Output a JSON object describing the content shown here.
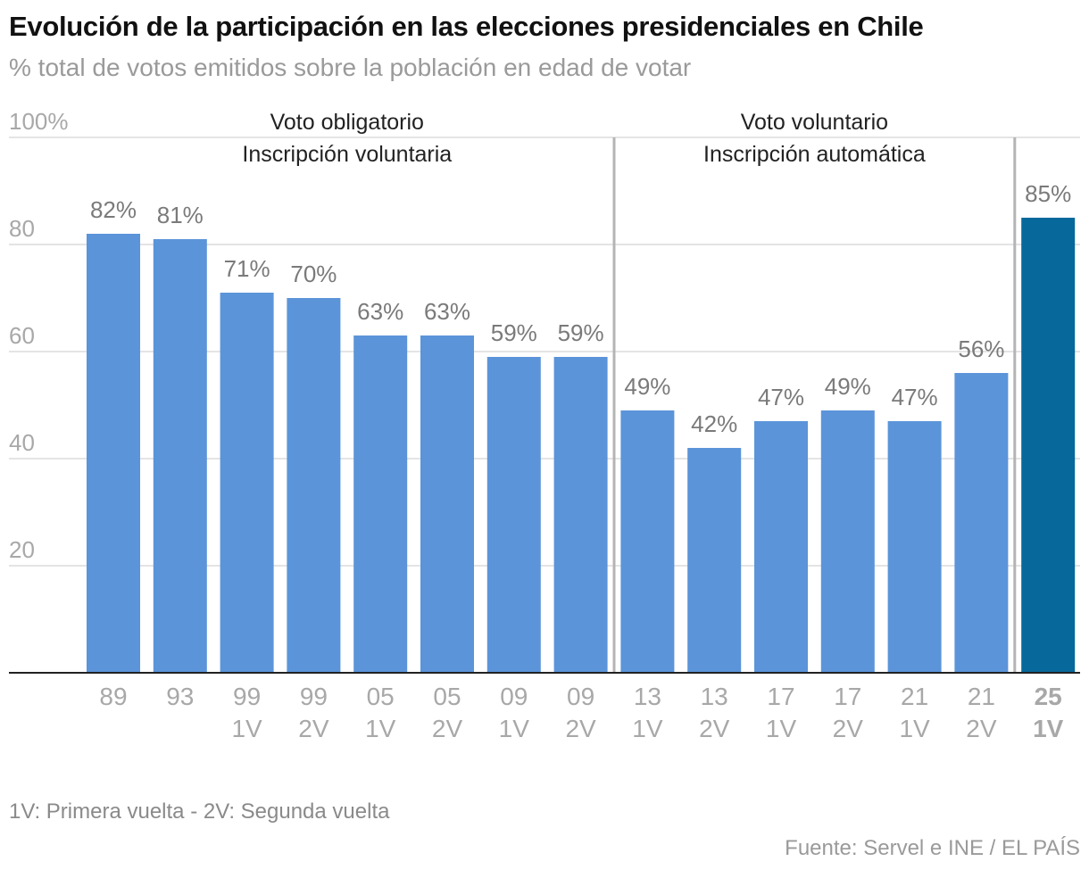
{
  "chart_data": {
    "type": "bar",
    "title": "Evolución de la participación en las elecciones presidenciales en Chile",
    "subtitle": "% total de votos emitidos sobre la población en edad de votar",
    "ylim": [
      0,
      100
    ],
    "yticks": [
      {
        "value": 100,
        "label": "100%"
      },
      {
        "value": 80,
        "label": "80"
      },
      {
        "value": 60,
        "label": "60"
      },
      {
        "value": 40,
        "label": "40"
      },
      {
        "value": 20,
        "label": "20"
      }
    ],
    "categories": [
      {
        "year": "89",
        "round": ""
      },
      {
        "year": "93",
        "round": ""
      },
      {
        "year": "99",
        "round": "1V"
      },
      {
        "year": "99",
        "round": "2V"
      },
      {
        "year": "05",
        "round": "1V"
      },
      {
        "year": "05",
        "round": "2V"
      },
      {
        "year": "09",
        "round": "1V"
      },
      {
        "year": "09",
        "round": "2V"
      },
      {
        "year": "13",
        "round": "1V"
      },
      {
        "year": "13",
        "round": "2V"
      },
      {
        "year": "17",
        "round": "1V"
      },
      {
        "year": "17",
        "round": "2V"
      },
      {
        "year": "21",
        "round": "1V"
      },
      {
        "year": "21",
        "round": "2V"
      },
      {
        "year": "25",
        "round": "1V",
        "highlight": true
      }
    ],
    "values": [
      82,
      81,
      71,
      70,
      63,
      63,
      59,
      59,
      49,
      42,
      47,
      49,
      47,
      56,
      85
    ],
    "value_labels": [
      "82%",
      "81%",
      "71%",
      "70%",
      "63%",
      "63%",
      "59%",
      "59%",
      "49%",
      "42%",
      "47%",
      "49%",
      "47%",
      "56%",
      "85%"
    ],
    "regions": [
      {
        "lines": [
          "Voto obligatorio",
          "Inscripción voluntaria"
        ],
        "from_index": 0,
        "to_index": 7
      },
      {
        "lines": [
          "Voto voluntario",
          "Inscripción automática"
        ],
        "from_index": 8,
        "to_index": 13
      }
    ],
    "colors": {
      "bar": "#5b94d9",
      "highlight": "#07689b",
      "grid": "#dcdcdc",
      "divider": "#b4b4b4",
      "axis": "#222222",
      "tick_label": "#a8a8a8",
      "value_label": "#7a7a7a",
      "region_label": "#222222"
    }
  },
  "footnote": "1V: Primera vuelta - 2V: Segunda vuelta",
  "source": "Fuente: Servel e INE / EL PAÍS"
}
